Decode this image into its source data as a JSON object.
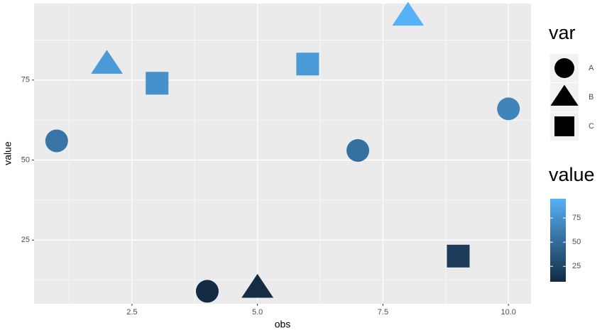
{
  "chart_data": {
    "type": "scatter",
    "x_label": "obs",
    "y_label": "value",
    "x": [
      1,
      2,
      3,
      4,
      5,
      6,
      7,
      8,
      9,
      10
    ],
    "values": [
      56,
      80,
      74,
      9,
      10,
      80,
      53,
      95,
      20,
      66
    ],
    "var": [
      "A",
      "B",
      "C",
      "A",
      "B",
      "C",
      "A",
      "B",
      "C",
      "A"
    ],
    "xlim": [
      0.55,
      10.45
    ],
    "xticks": [
      {
        "value": 2.5,
        "label": "2.5"
      },
      {
        "value": 5,
        "label": "5.0"
      },
      {
        "value": 7.5,
        "label": "7.5"
      },
      {
        "value": 10,
        "label": "10.0"
      }
    ],
    "ylim": [
      5.1,
      98.9
    ],
    "yticks": [
      25,
      50,
      75
    ],
    "grid": true,
    "shape_legend": {
      "title": "var",
      "labels": [
        "A",
        "B",
        "C"
      ]
    },
    "color_legend": {
      "title": "value",
      "low": "#132B43",
      "high": "#56B1F7",
      "lim": [
        9,
        95
      ],
      "ticks": [
        25,
        50,
        75
      ]
    }
  }
}
